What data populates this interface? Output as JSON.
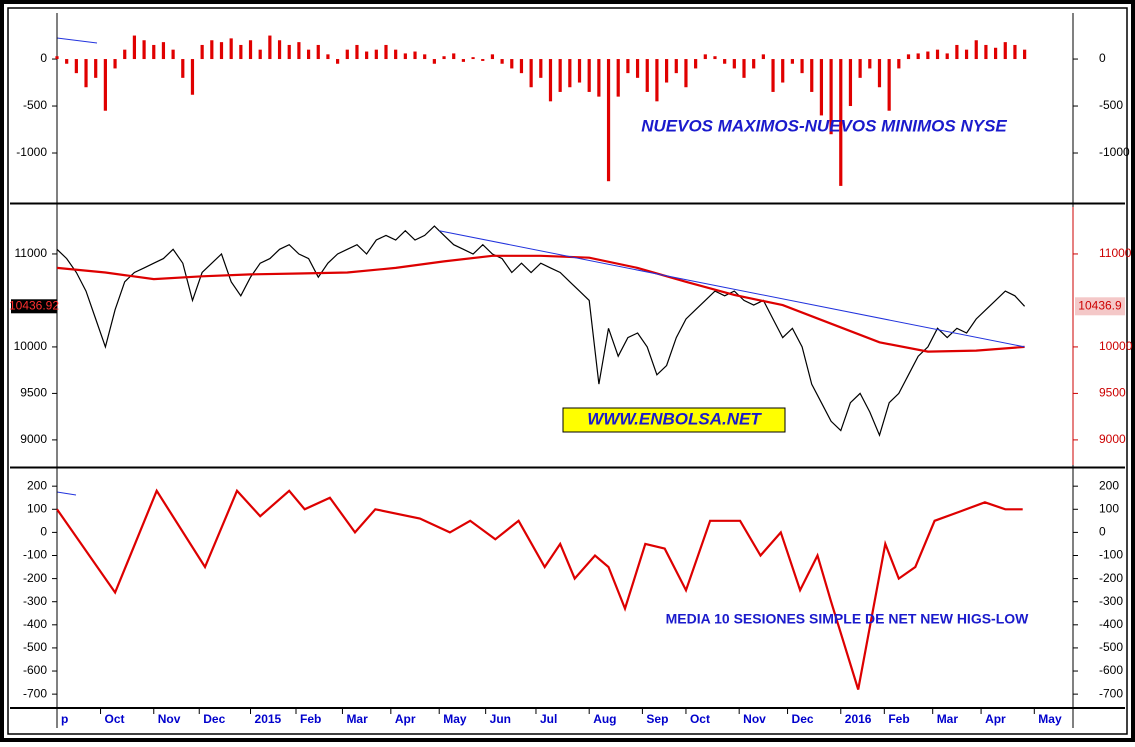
{
  "chart_data": [
    {
      "type": "bar",
      "annotation": "NUEVOS MAXIMOS-NUEVOS MINIMOS NYSE",
      "color": "#e00000",
      "xlim": [
        0,
        105
      ],
      "ylim": [
        -1500,
        490
      ],
      "yticks": [
        0,
        -500,
        -1000
      ],
      "x": [
        0,
        1,
        2,
        3,
        4,
        5,
        6,
        7,
        8,
        9,
        10,
        11,
        12,
        13,
        14,
        15,
        16,
        17,
        18,
        19,
        20,
        21,
        22,
        23,
        24,
        25,
        26,
        27,
        28,
        29,
        30,
        31,
        32,
        33,
        34,
        35,
        36,
        37,
        38,
        39,
        40,
        41,
        42,
        43,
        44,
        45,
        46,
        47,
        48,
        49,
        50,
        51,
        52,
        53,
        54,
        55,
        56,
        57,
        58,
        59,
        60,
        61,
        62,
        63,
        64,
        65,
        66,
        67,
        68,
        69,
        70,
        71,
        72,
        73,
        74,
        75,
        76,
        77,
        78,
        79,
        80,
        81,
        82,
        83,
        84,
        85,
        86,
        87,
        88,
        89,
        90,
        91,
        92,
        93,
        94,
        95,
        96,
        97,
        98,
        99,
        100
      ],
      "values": [
        30,
        -50,
        -150,
        -300,
        -200,
        -550,
        -100,
        100,
        250,
        200,
        150,
        180,
        100,
        -200,
        -380,
        150,
        200,
        180,
        220,
        150,
        200,
        100,
        250,
        200,
        150,
        180,
        100,
        150,
        50,
        -50,
        100,
        150,
        80,
        100,
        150,
        100,
        60,
        80,
        50,
        -50,
        30,
        60,
        -30,
        20,
        -20,
        50,
        -50,
        -100,
        -150,
        -300,
        -200,
        -450,
        -350,
        -300,
        -250,
        -350,
        -400,
        -1300,
        -400,
        -150,
        -200,
        -350,
        -450,
        -250,
        -150,
        -300,
        -100,
        50,
        30,
        -50,
        -100,
        -200,
        -100,
        50,
        -350,
        -250,
        -50,
        -150,
        -350,
        -600,
        -800,
        -1350,
        -500,
        -200,
        -100,
        -300,
        -550,
        -100,
        50,
        60,
        80,
        100,
        60,
        150,
        100,
        200,
        150,
        120,
        180,
        150,
        100
      ]
    },
    {
      "type": "line",
      "annotation": "WWW.ENBOLSA.NET",
      "right_axis_color": "#cc0000",
      "xlim": [
        0,
        105
      ],
      "ylim": [
        8730,
        11505
      ],
      "yticks": [
        11000,
        10000,
        9500,
        9000
      ],
      "last_value": 10436.92,
      "last_value_labels": [
        "10436.92",
        "10436.9"
      ],
      "series": [
        {
          "color": "#000000",
          "x": [
            0,
            1,
            2,
            3,
            4,
            5,
            6,
            7,
            8,
            9,
            10,
            11,
            12,
            13,
            14,
            15,
            16,
            17,
            18,
            19,
            20,
            21,
            22,
            23,
            24,
            25,
            26,
            27,
            28,
            29,
            30,
            31,
            32,
            33,
            34,
            35,
            36,
            37,
            38,
            39,
            40,
            41,
            42,
            43,
            44,
            45,
            46,
            47,
            48,
            49,
            50,
            51,
            52,
            53,
            54,
            55,
            56,
            57,
            58,
            59,
            60,
            61,
            62,
            63,
            64,
            65,
            66,
            67,
            68,
            69,
            70,
            71,
            72,
            73,
            74,
            75,
            76,
            77,
            78,
            79,
            80,
            81,
            82,
            83,
            84,
            85,
            86,
            87,
            88,
            89,
            90,
            91,
            92,
            93,
            94,
            95,
            96,
            97,
            98,
            99,
            100
          ],
          "values": [
            11050,
            10950,
            10800,
            10600,
            10300,
            10000,
            10400,
            10700,
            10800,
            10850,
            10900,
            10950,
            11050,
            10900,
            10500,
            10800,
            10900,
            11000,
            10700,
            10550,
            10750,
            10900,
            10950,
            11050,
            11100,
            11000,
            10950,
            10750,
            10900,
            11000,
            11050,
            11100,
            11000,
            11150,
            11200,
            11150,
            11250,
            11150,
            11200,
            11300,
            11200,
            11100,
            11050,
            11000,
            11100,
            11000,
            10950,
            10800,
            10900,
            10800,
            10900,
            10850,
            10800,
            10700,
            10600,
            10500,
            9600,
            10200,
            9900,
            10100,
            10150,
            10000,
            9700,
            9800,
            10100,
            10300,
            10400,
            10500,
            10600,
            10550,
            10600,
            10500,
            10450,
            10500,
            10300,
            10100,
            10200,
            10000,
            9600,
            9400,
            9200,
            9100,
            9400,
            9500,
            9300,
            9050,
            9400,
            9500,
            9700,
            9900,
            10000,
            10200,
            10100,
            10200,
            10150,
            10300,
            10400,
            10500,
            10600,
            10550,
            10436.92
          ]
        },
        {
          "color": "#dd0000",
          "x": [
            0,
            5,
            10,
            15,
            20,
            25,
            30,
            35,
            40,
            45,
            50,
            55,
            60,
            65,
            70,
            75,
            80,
            85,
            90,
            95,
            100
          ],
          "values": [
            10850,
            10800,
            10730,
            10760,
            10780,
            10790,
            10800,
            10850,
            10920,
            10980,
            10980,
            10960,
            10850,
            10700,
            10560,
            10450,
            10250,
            10050,
            9950,
            9960,
            10000
          ]
        },
        {
          "color": "#2233dd",
          "x": [
            39.5,
            100
          ],
          "values": [
            11250,
            10000
          ]
        }
      ]
    },
    {
      "type": "line",
      "annotation": "MEDIA 10 SESIONES SIMPLE DE NET NEW HIGS-LOW",
      "xlim": [
        0,
        105
      ],
      "ylim": [
        -760,
        270
      ],
      "yticks": [
        200,
        100,
        0,
        -100,
        -200,
        -300,
        -400,
        -500,
        -600,
        -700
      ],
      "xticks": [
        {
          "value": 0,
          "label": "p"
        },
        {
          "value": 4.5,
          "label": "Oct"
        },
        {
          "value": 10,
          "label": "Nov"
        },
        {
          "value": 14.7,
          "label": "Dec"
        },
        {
          "value": 20,
          "label": "2015"
        },
        {
          "value": 24.7,
          "label": "Feb"
        },
        {
          "value": 29.5,
          "label": "Mar"
        },
        {
          "value": 34.5,
          "label": "Apr"
        },
        {
          "value": 39.5,
          "label": "May"
        },
        {
          "value": 44.3,
          "label": "Jun"
        },
        {
          "value": 49.5,
          "label": "Jul"
        },
        {
          "value": 55,
          "label": "Aug"
        },
        {
          "value": 60.5,
          "label": "Sep"
        },
        {
          "value": 65,
          "label": "Oct"
        },
        {
          "value": 70.5,
          "label": "Nov"
        },
        {
          "value": 75.5,
          "label": "Dec"
        },
        {
          "value": 81,
          "label": "2016"
        },
        {
          "value": 85.5,
          "label": "Feb"
        },
        {
          "value": 90.5,
          "label": "Mar"
        },
        {
          "value": 95.5,
          "label": "Apr"
        },
        {
          "value": 101,
          "label": "May"
        }
      ],
      "series": [
        {
          "color": "#dd0000",
          "x": [
            0,
            6,
            10.3,
            15.3,
            18.6,
            21,
            24,
            25.6,
            28.2,
            30.8,
            32.9,
            37.5,
            40.6,
            42.7,
            45.3,
            47.7,
            50.4,
            52,
            53.5,
            55.6,
            57,
            58.7,
            60.8,
            62.8,
            65,
            67.5,
            70.6,
            72.7,
            74.8,
            76.8,
            78.6,
            80,
            82.8,
            85.6,
            87,
            88.7,
            90.7,
            93.3,
            95.9,
            98,
            99.8
          ],
          "values": [
            100,
            -260,
            180,
            -150,
            180,
            70,
            180,
            100,
            150,
            0,
            100,
            60,
            0,
            50,
            -30,
            50,
            -150,
            -50,
            -200,
            -100,
            -150,
            -330,
            -50,
            -70,
            -250,
            50,
            50,
            -100,
            0,
            -250,
            -100,
            -300,
            -680,
            -50,
            -200,
            -150,
            50,
            90,
            130,
            100,
            100
          ]
        }
      ]
    }
  ]
}
